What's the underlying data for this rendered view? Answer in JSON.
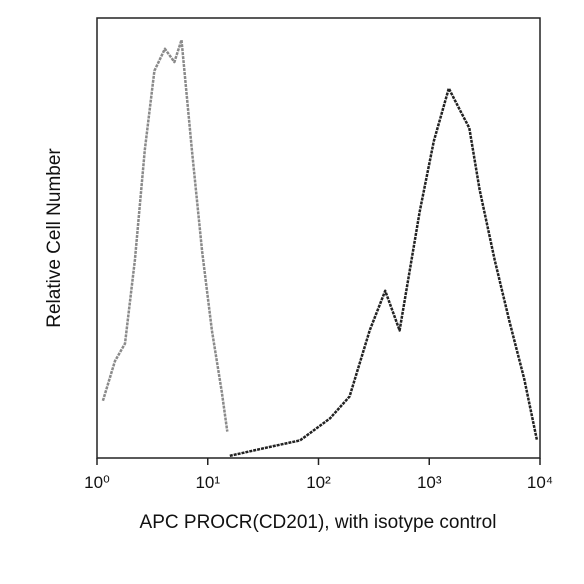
{
  "chart_data": {
    "type": "line",
    "xlabel": "APC  PROCR(CD201), with isotype control",
    "ylabel": "Relative Cell Number",
    "xscale": "log",
    "xlim": [
      1,
      10000
    ],
    "ylim": [
      0,
      100
    ],
    "xticks": [
      {
        "value": 1,
        "label": "10⁰"
      },
      {
        "value": 10,
        "label": "10¹"
      },
      {
        "value": 100,
        "label": "10²"
      },
      {
        "value": 1000,
        "label": "10³"
      },
      {
        "value": 10000,
        "label": "10⁴"
      }
    ],
    "series": [
      {
        "color": "#8a8a8a",
        "x": [
          1.13,
          1.45,
          1.79,
          2.2,
          2.7,
          3.3,
          4.1,
          5.0,
          5.8,
          7.2,
          8.9,
          10.9,
          13.4,
          15
        ],
        "values": [
          13,
          22,
          26,
          45,
          70,
          88,
          93,
          90,
          95,
          70,
          47,
          29,
          15,
          6
        ]
      },
      {
        "color": "#222222",
        "x": [
          15.8,
          36,
          68,
          127,
          191,
          290,
          400,
          540,
          820,
          1100,
          1500,
          1900,
          2300,
          2850,
          3900,
          5300,
          7200,
          9400
        ],
        "values": [
          0.5,
          2.5,
          4,
          9,
          14,
          29,
          38,
          29,
          56,
          72,
          84,
          79,
          75,
          61,
          45,
          31,
          18,
          4
        ]
      }
    ]
  }
}
